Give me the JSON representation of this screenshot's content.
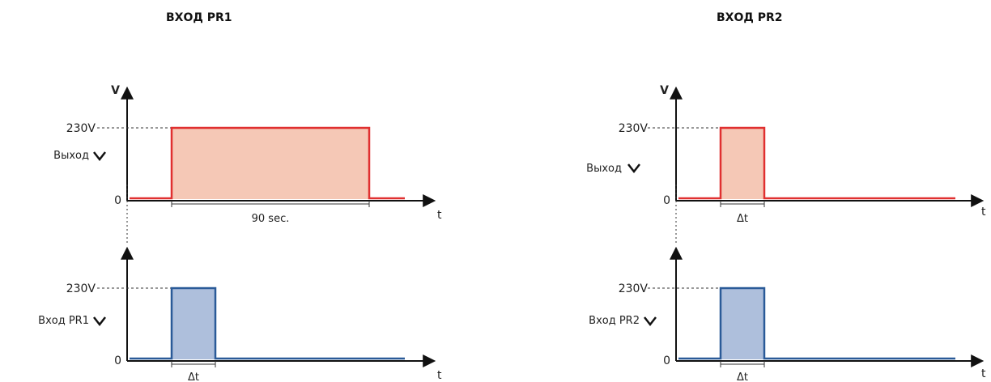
{
  "left": {
    "title": "ВХОД PR1",
    "axis_v": "V",
    "axis_t": "t",
    "output": {
      "level_label": "230V",
      "zero_label": "0",
      "signal_label": "Выход",
      "duration_label": "90 sec."
    },
    "input": {
      "level_label": "230V",
      "zero_label": "0",
      "signal_label": "Вход PR1",
      "duration_label": "Δt"
    }
  },
  "right": {
    "title": "ВХОД PR2",
    "axis_v": "V",
    "axis_t": "t",
    "output": {
      "level_label": "230V",
      "zero_label": "0",
      "signal_label": "Выход",
      "duration_label": "Δt"
    },
    "input": {
      "level_label": "230V",
      "zero_label": "0",
      "signal_label": "Вход PR2",
      "duration_label": "Δt"
    }
  },
  "colors": {
    "output_stroke": "#e03030",
    "output_fill": "#f5c8b6",
    "input_stroke": "#2a5a98",
    "input_fill": "#aebfdc",
    "axis": "#111111"
  }
}
